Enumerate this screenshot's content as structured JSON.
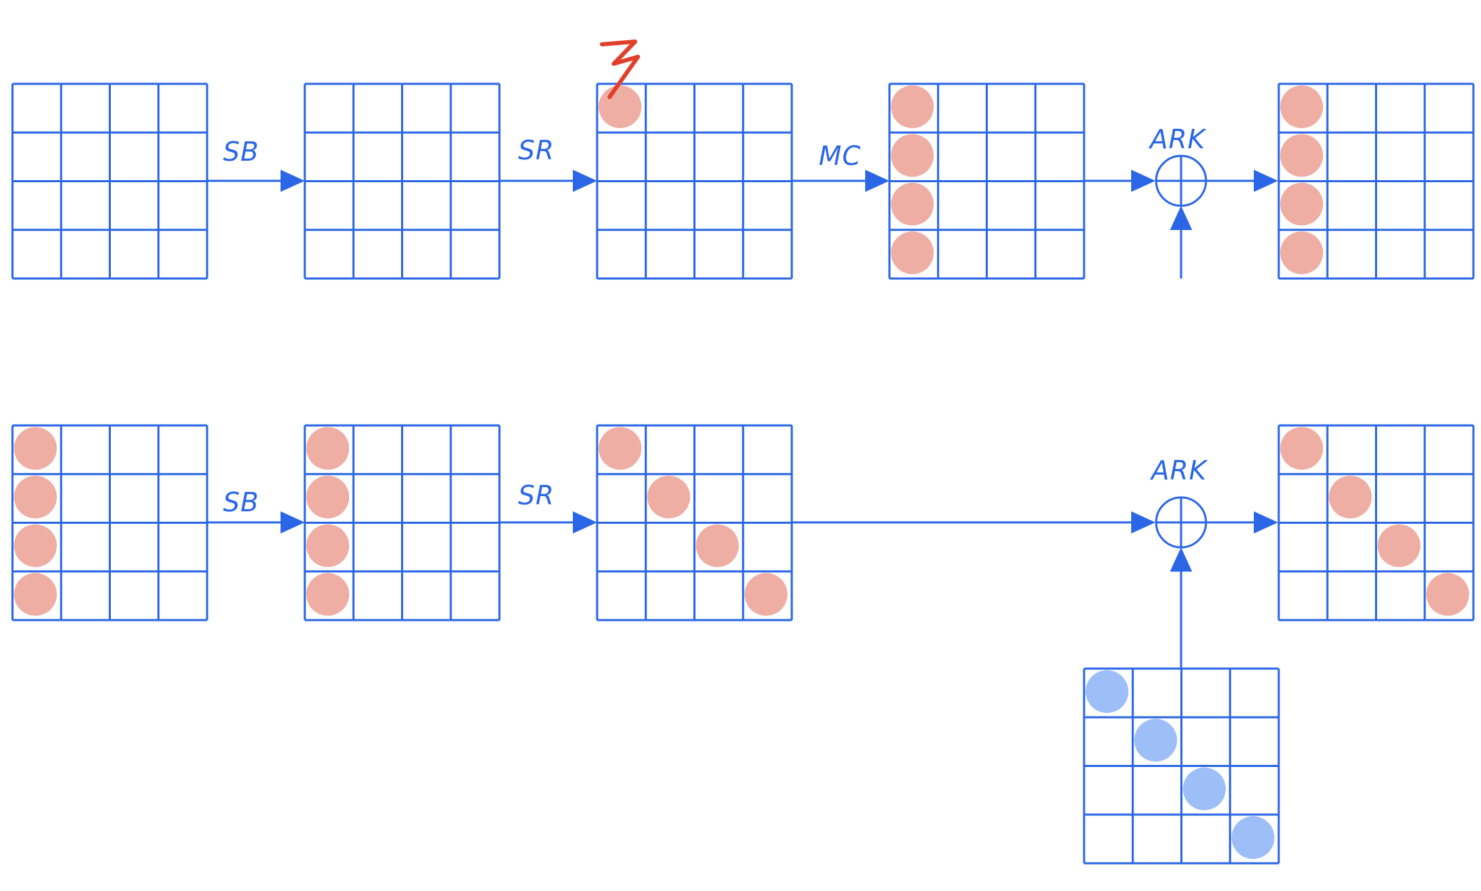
{
  "colors": {
    "line": "#2a66e6",
    "state_dot": "#eeaea4",
    "key_dot": "#9dbef6",
    "fault": "#e0402a"
  },
  "labels": {
    "sb_top": "SB",
    "sr_top": "SR",
    "mc_top": "MC",
    "ark_top": "ARK",
    "sb_bottom": "SB",
    "sr_bottom": "SR",
    "ark_bottom": "ARK"
  },
  "fault_icon": "lightning-icon",
  "grids": [
    {
      "name": "state-grid-top-1",
      "dots": []
    },
    {
      "name": "state-grid-top-2",
      "dots": []
    },
    {
      "name": "state-grid-top-3",
      "dots": [
        [
          0,
          0
        ]
      ]
    },
    {
      "name": "state-grid-top-4",
      "dots": [
        [
          0,
          0
        ],
        [
          1,
          0
        ],
        [
          2,
          0
        ],
        [
          3,
          0
        ]
      ]
    },
    {
      "name": "state-grid-top-5",
      "dots": [
        [
          0,
          0
        ],
        [
          1,
          0
        ],
        [
          2,
          0
        ],
        [
          3,
          0
        ]
      ]
    },
    {
      "name": "state-grid-bottom-1",
      "dots": [
        [
          0,
          0
        ],
        [
          1,
          0
        ],
        [
          2,
          0
        ],
        [
          3,
          0
        ]
      ]
    },
    {
      "name": "state-grid-bottom-2",
      "dots": [
        [
          0,
          0
        ],
        [
          1,
          0
        ],
        [
          2,
          0
        ],
        [
          3,
          0
        ]
      ]
    },
    {
      "name": "state-grid-bottom-3",
      "dots": [
        [
          0,
          0
        ],
        [
          1,
          1
        ],
        [
          2,
          2
        ],
        [
          3,
          3
        ]
      ]
    },
    {
      "name": "state-grid-bottom-4",
      "dots": [
        [
          0,
          0
        ],
        [
          1,
          1
        ],
        [
          2,
          2
        ],
        [
          3,
          3
        ]
      ]
    },
    {
      "name": "round-key-grid",
      "dots": [
        [
          0,
          0
        ],
        [
          1,
          1
        ],
        [
          2,
          2
        ],
        [
          3,
          3
        ]
      ],
      "key": true
    }
  ]
}
